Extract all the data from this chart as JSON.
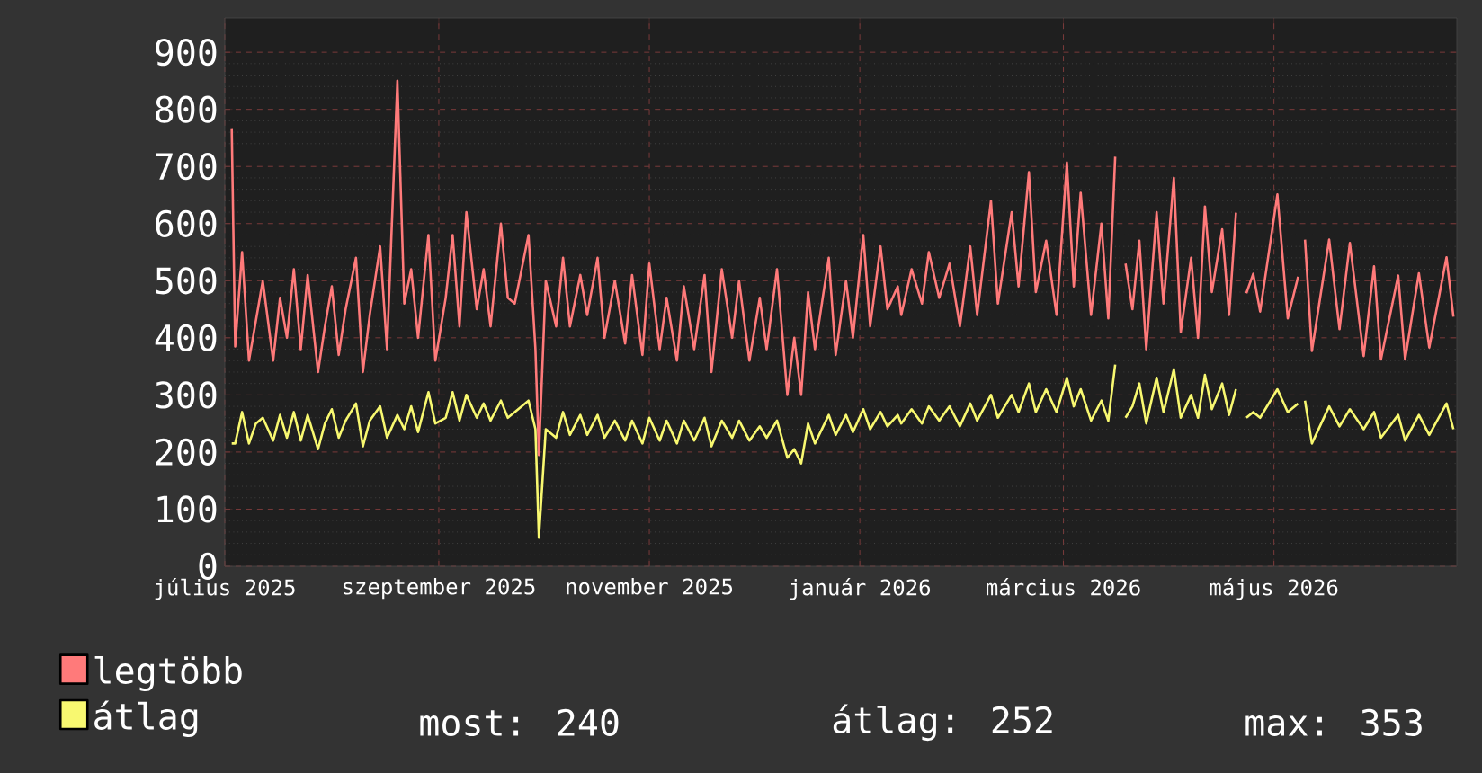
{
  "chart_data": {
    "type": "line",
    "x": [
      "2025-07-03",
      "2025-07-04",
      "2025-07-06",
      "2025-07-08",
      "2025-07-10",
      "2025-07-12",
      "2025-07-15",
      "2025-07-17",
      "2025-07-19",
      "2025-07-21",
      "2025-07-23",
      "2025-07-25",
      "2025-07-28",
      "2025-07-30",
      "2025-08-01",
      "2025-08-03",
      "2025-08-05",
      "2025-08-08",
      "2025-08-10",
      "2025-08-12",
      "2025-08-15",
      "2025-08-17",
      "2025-08-20",
      "2025-08-22",
      "2025-08-24",
      "2025-08-26",
      "2025-08-29",
      "2025-08-31",
      "2025-09-03",
      "2025-09-05",
      "2025-09-07",
      "2025-09-09",
      "2025-09-12",
      "2025-09-14",
      "2025-09-16",
      "2025-09-19",
      "2025-09-21",
      "2025-09-23",
      "2025-09-27",
      "2025-09-29",
      "2025-09-30",
      "2025-10-02",
      "2025-10-05",
      "2025-10-07",
      "2025-10-09",
      "2025-10-12",
      "2025-10-14",
      "2025-10-17",
      "2025-10-19",
      "2025-10-22",
      "2025-10-25",
      "2025-10-27",
      "2025-10-30",
      "2025-11-01",
      "2025-11-04",
      "2025-11-06",
      "2025-11-09",
      "2025-11-11",
      "2025-11-14",
      "2025-11-17",
      "2025-11-19",
      "2025-11-22",
      "2025-11-25",
      "2025-11-27",
      "2025-11-30",
      "2025-12-03",
      "2025-12-05",
      "2025-12-08",
      "2025-12-11",
      "2025-12-13",
      "2025-12-15",
      "2025-12-17",
      "2025-12-19",
      "2025-12-23",
      "2025-12-25",
      "2025-12-28",
      "2025-12-30",
      "2026-01-02",
      "2026-01-04",
      "2026-01-07",
      "2026-01-09",
      "2026-01-12",
      "2026-01-13",
      "2026-01-16",
      "2026-01-19",
      "2026-01-21",
      "2026-01-24",
      "2026-01-27",
      "2026-01-30",
      "2026-02-02",
      "2026-02-04",
      "2026-02-08",
      "2026-02-10",
      "2026-02-14",
      "2026-02-16",
      "2026-02-19",
      "2026-02-21",
      "2026-02-24",
      "2026-02-27",
      "2026-03-02",
      "2026-03-04",
      "2026-03-06",
      "2026-03-09",
      "2026-03-12",
      "2026-03-14",
      "2026-03-16",
      "2026-03-17",
      "2026-03-19",
      "2026-03-21",
      "2026-03-23",
      "2026-03-25",
      "2026-03-28",
      "2026-03-30",
      "2026-04-02",
      "2026-04-04",
      "2026-04-07",
      "2026-04-09",
      "2026-04-11",
      "2026-04-13",
      "2026-04-16",
      "2026-04-18",
      "2026-04-20",
      "2026-04-21",
      "2026-04-23",
      "2026-04-25",
      "2026-04-27",
      "2026-05-02",
      "2026-05-05",
      "2026-05-08",
      "2026-05-09",
      "2026-05-10",
      "2026-05-12",
      "2026-05-17",
      "2026-05-20",
      "2026-05-23",
      "2026-05-27",
      "2026-05-30",
      "2026-06-01",
      "2026-06-06",
      "2026-06-08",
      "2026-06-12",
      "2026-06-15",
      "2026-06-20",
      "2026-06-22"
    ],
    "series": [
      {
        "name": "legtöbb",
        "color": "#ff7a7a",
        "values": [
          767,
          385,
          550,
          360,
          430,
          500,
          360,
          470,
          400,
          520,
          380,
          510,
          340,
          420,
          490,
          370,
          450,
          540,
          340,
          440,
          560,
          380,
          850,
          460,
          520,
          400,
          580,
          360,
          470,
          580,
          420,
          620,
          450,
          520,
          420,
          600,
          470,
          460,
          580,
          380,
          195,
          500,
          420,
          540,
          420,
          510,
          440,
          540,
          400,
          500,
          390,
          510,
          370,
          530,
          380,
          470,
          360,
          490,
          380,
          510,
          340,
          520,
          400,
          500,
          360,
          470,
          380,
          520,
          300,
          400,
          300,
          480,
          380,
          540,
          370,
          500,
          400,
          580,
          420,
          560,
          450,
          490,
          440,
          520,
          460,
          550,
          470,
          530,
          420,
          560,
          440,
          640,
          460,
          620,
          490,
          690,
          480,
          570,
          440,
          707,
          490,
          654,
          440,
          600,
          434,
          717,
          null,
          530,
          450,
          570,
          380,
          620,
          460,
          680,
          410,
          540,
          400,
          630,
          480,
          590,
          440,
          619,
          null,
          478,
          512,
          446,
          651,
          434,
          507,
          null,
          572,
          377,
          572,
          415,
          566,
          368,
          525,
          362,
          509,
          362,
          513,
          383,
          541,
          437
        ]
      },
      {
        "name": "átlag",
        "color": "#f8f870",
        "values": [
          215,
          215,
          270,
          215,
          250,
          260,
          220,
          265,
          225,
          270,
          220,
          265,
          205,
          250,
          275,
          225,
          255,
          285,
          210,
          255,
          280,
          225,
          265,
          240,
          280,
          235,
          305,
          250,
          260,
          305,
          255,
          300,
          260,
          285,
          255,
          290,
          260,
          270,
          290,
          240,
          50,
          240,
          225,
          270,
          230,
          265,
          230,
          265,
          225,
          255,
          220,
          255,
          215,
          260,
          220,
          255,
          215,
          255,
          220,
          260,
          210,
          255,
          225,
          255,
          220,
          245,
          225,
          255,
          190,
          205,
          180,
          250,
          215,
          265,
          230,
          265,
          235,
          275,
          240,
          270,
          245,
          265,
          250,
          275,
          250,
          280,
          255,
          280,
          245,
          285,
          255,
          300,
          260,
          300,
          270,
          320,
          270,
          310,
          270,
          330,
          280,
          310,
          255,
          290,
          255,
          353,
          null,
          260,
          280,
          320,
          250,
          330,
          270,
          345,
          260,
          300,
          260,
          335,
          275,
          320,
          265,
          310,
          null,
          260,
          270,
          260,
          310,
          270,
          285,
          null,
          290,
          215,
          280,
          245,
          275,
          240,
          270,
          225,
          265,
          220,
          265,
          230,
          285,
          240
        ]
      }
    ],
    "xlim": [
      "2025-07-01",
      "2026-06-23"
    ],
    "xticks": [
      {
        "value": "2025-07-01",
        "label": "július 2025"
      },
      {
        "value": "2025-09-01",
        "label": "szeptember 2025"
      },
      {
        "value": "2025-11-01",
        "label": "november 2025"
      },
      {
        "value": "2026-01-01",
        "label": "január 2026"
      },
      {
        "value": "2026-03-01",
        "label": "március 2026"
      },
      {
        "value": "2026-05-01",
        "label": "május 2026"
      }
    ],
    "ylim": [
      0,
      960
    ],
    "yticks": [
      0,
      100,
      200,
      300,
      400,
      500,
      600,
      700,
      800,
      900
    ],
    "grid": true,
    "legend": "bottom",
    "annotations": [
      "most: 240",
      "átlag: 252",
      "max: 353"
    ]
  }
}
